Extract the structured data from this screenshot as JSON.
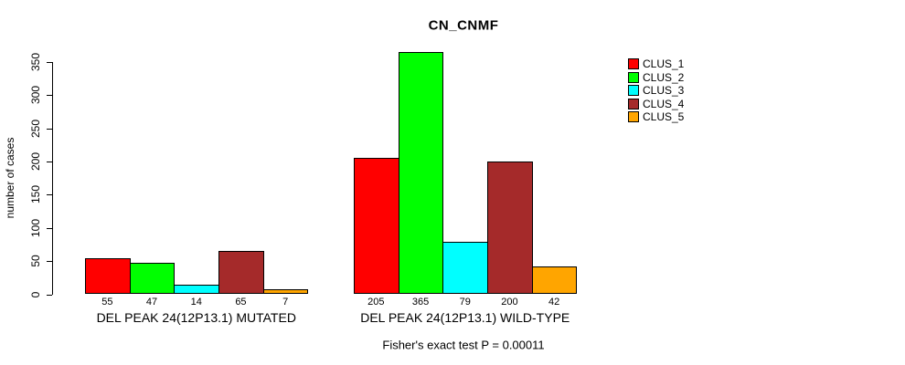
{
  "title": "CN_CNMF",
  "y_axis": {
    "label": "number of cases",
    "ticks": [
      0,
      50,
      100,
      150,
      200,
      250,
      300,
      350
    ]
  },
  "legend": {
    "items": [
      {
        "label": "CLUS_1",
        "color": "#FF0000"
      },
      {
        "label": "CLUS_2",
        "color": "#00FF00"
      },
      {
        "label": "CLUS_3",
        "color": "#00FFFF"
      },
      {
        "label": "CLUS_4",
        "color": "#A52A2A"
      },
      {
        "label": "CLUS_5",
        "color": "#FFA500"
      }
    ]
  },
  "annotation": "Fisher's exact test P = 0.00011",
  "chart_data": {
    "type": "bar",
    "title": "CN_CNMF",
    "xlabel": "",
    "ylabel": "number of cases",
    "ylim": [
      0,
      350
    ],
    "yticks": [
      0,
      50,
      100,
      150,
      200,
      250,
      300,
      350
    ],
    "grid": false,
    "legend_position": "top-right",
    "bar_value_labels": true,
    "categories": [
      "DEL PEAK 24(12P13.1) MUTATED",
      "DEL PEAK 24(12P13.1) WILD-TYPE"
    ],
    "series": [
      {
        "name": "CLUS_1",
        "color": "#FF0000",
        "values": [
          55,
          205
        ]
      },
      {
        "name": "CLUS_2",
        "color": "#00FF00",
        "values": [
          47,
          365
        ]
      },
      {
        "name": "CLUS_3",
        "color": "#00FFFF",
        "values": [
          14,
          79
        ]
      },
      {
        "name": "CLUS_4",
        "color": "#A52A2A",
        "values": [
          65,
          200
        ]
      },
      {
        "name": "CLUS_5",
        "color": "#FFA500",
        "values": [
          7,
          42
        ]
      }
    ],
    "annotation": "Fisher's exact test P = 0.00011"
  }
}
